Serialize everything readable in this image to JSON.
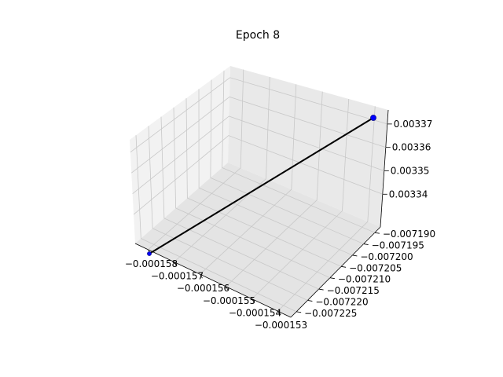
{
  "chart_data": {
    "type": "line",
    "projection": "3d",
    "title": "Epoch 8",
    "xlabel": "",
    "ylabel": "",
    "zlabel": "",
    "grid": true,
    "x_ticks": [
      "−0.000158",
      "−0.000157",
      "−0.000156",
      "−0.000155",
      "−0.000154",
      "−0.000153"
    ],
    "y_ticks": [
      "−0.007190",
      "−0.007195",
      "−0.007200",
      "−0.007205",
      "−0.007210",
      "−0.007215",
      "−0.007220",
      "−0.007225"
    ],
    "z_ticks": [
      "0.00334",
      "0.00335",
      "0.00336",
      "0.00337"
    ],
    "series": [
      {
        "color": "#000000",
        "marker_color": "#0000ff",
        "points": [
          {
            "x": -0.000158,
            "y": -0.007226,
            "z": 0.003332
          },
          {
            "x": -0.000153,
            "y": -0.007188,
            "z": 0.003374
          }
        ]
      }
    ],
    "colors": {
      "pane": "#f2f2f2",
      "grid": "#c8c8c8",
      "line": "#000000",
      "marker": "#0000ff"
    }
  }
}
